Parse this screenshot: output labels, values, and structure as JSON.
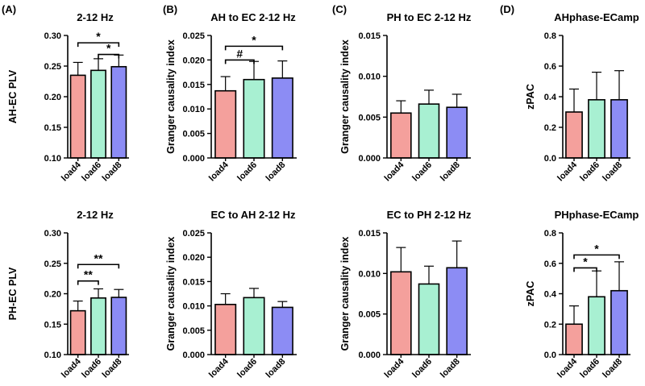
{
  "panels": [
    "(A)",
    "(B)",
    "(C)",
    "(D)"
  ],
  "colors": {
    "load4": "#f4a09c",
    "load6": "#a8f0d2",
    "load8": "#8c8cf4",
    "stroke": "#000000"
  },
  "chart_data": [
    {
      "type": "bar",
      "title": "2-12 Hz",
      "ylabel": "AH-EC PLV",
      "categories": [
        "load4",
        "load6",
        "load8"
      ],
      "values": [
        0.235,
        0.243,
        0.249
      ],
      "errors": [
        0.021,
        0.019,
        0.019
      ],
      "ylim": [
        0.1,
        0.3
      ],
      "yticks": [
        "0.10",
        "0.15",
        "0.20",
        "0.25",
        "0.30"
      ],
      "significance": [
        {
          "from": "load4",
          "to": "load8",
          "y": 0.288,
          "mark": "*"
        },
        {
          "from": "load6",
          "to": "load8",
          "y": 0.269,
          "mark": "*"
        }
      ]
    },
    {
      "type": "bar",
      "title": "AH to EC 2-12 Hz",
      "ylabel": "Granger causality index",
      "categories": [
        "load4",
        "load6",
        "load8"
      ],
      "values": [
        0.0137,
        0.016,
        0.0163
      ],
      "errors": [
        0.0029,
        0.0037,
        0.0035
      ],
      "ylim": [
        0,
        0.025
      ],
      "yticks": [
        "0.000",
        "0.005",
        "0.010",
        "0.015",
        "0.020",
        "0.025"
      ],
      "significance": [
        {
          "from": "load4",
          "to": "load8",
          "y": 0.0228,
          "mark": "*"
        },
        {
          "from": "load4",
          "to": "load6",
          "y": 0.02,
          "mark": "#"
        }
      ]
    },
    {
      "type": "bar",
      "title": "PH to EC 2-12 Hz",
      "ylabel": "Granger causality index",
      "categories": [
        "load4",
        "load6",
        "load8"
      ],
      "values": [
        0.0055,
        0.0066,
        0.0062
      ],
      "errors": [
        0.0015,
        0.0017,
        0.0016
      ],
      "ylim": [
        0,
        0.015
      ],
      "yticks": [
        "0.000",
        "0.005",
        "0.010",
        "0.015"
      ],
      "significance": []
    },
    {
      "type": "bar",
      "title": "AHphase-ECamp",
      "ylabel": "zPAC",
      "categories": [
        "load4",
        "load6",
        "load8"
      ],
      "values": [
        0.3,
        0.38,
        0.38
      ],
      "errors": [
        0.15,
        0.18,
        0.19
      ],
      "ylim": [
        0,
        0.8
      ],
      "yticks": [
        "0.0",
        "0.2",
        "0.4",
        "0.6",
        "0.8"
      ],
      "significance": []
    },
    {
      "type": "bar",
      "title": "2-12 Hz",
      "ylabel": "PH-EC PLV",
      "categories": [
        "load4",
        "load6",
        "load8"
      ],
      "values": [
        0.172,
        0.193,
        0.194
      ],
      "errors": [
        0.016,
        0.015,
        0.013
      ],
      "ylim": [
        0.1,
        0.3
      ],
      "yticks": [
        "0.10",
        "0.15",
        "0.20",
        "0.25",
        "0.30"
      ],
      "significance": [
        {
          "from": "load4",
          "to": "load8",
          "y": 0.248,
          "mark": "**"
        },
        {
          "from": "load4",
          "to": "load6",
          "y": 0.221,
          "mark": "**"
        }
      ]
    },
    {
      "type": "bar",
      "title": "EC to AH 2-12 Hz",
      "ylabel": "Granger causality index",
      "categories": [
        "load4",
        "load6",
        "load8"
      ],
      "values": [
        0.0103,
        0.0117,
        0.0097
      ],
      "errors": [
        0.0022,
        0.0019,
        0.0012
      ],
      "ylim": [
        0,
        0.025
      ],
      "yticks": [
        "0.000",
        "0.005",
        "0.010",
        "0.015",
        "0.020",
        "0.025"
      ],
      "significance": []
    },
    {
      "type": "bar",
      "title": "EC to PH 2-12 Hz",
      "ylabel": "Granger causality index",
      "categories": [
        "load4",
        "load6",
        "load8"
      ],
      "values": [
        0.0102,
        0.0087,
        0.0107
      ],
      "errors": [
        0.003,
        0.0022,
        0.0033
      ],
      "ylim": [
        0,
        0.015
      ],
      "yticks": [
        "0.000",
        "0.005",
        "0.010",
        "0.015"
      ],
      "significance": []
    },
    {
      "type": "bar",
      "title": "PHphase-ECamp",
      "ylabel": "zPAC",
      "categories": [
        "load4",
        "load6",
        "load8"
      ],
      "values": [
        0.2,
        0.38,
        0.42
      ],
      "errors": [
        0.12,
        0.17,
        0.19
      ],
      "ylim": [
        0,
        0.8
      ],
      "yticks": [
        "0.0",
        "0.2",
        "0.4",
        "0.6",
        "0.8"
      ],
      "significance": [
        {
          "from": "load4",
          "to": "load8",
          "y": 0.655,
          "mark": "*"
        },
        {
          "from": "load4",
          "to": "load6",
          "y": 0.57,
          "mark": "*"
        }
      ]
    }
  ]
}
